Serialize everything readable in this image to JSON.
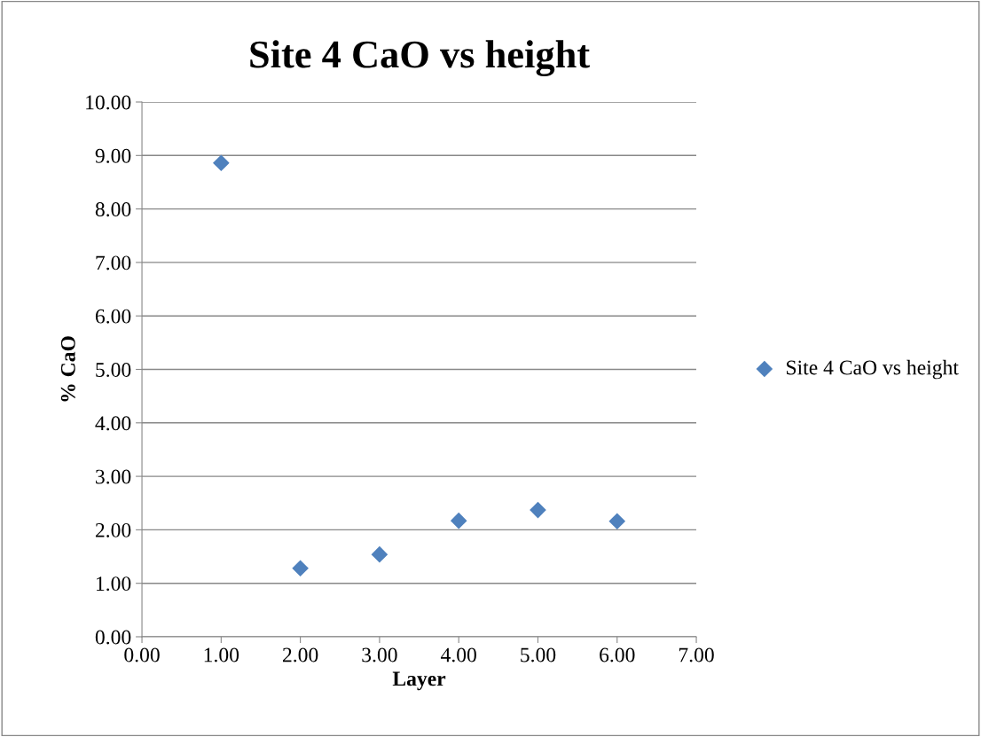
{
  "chart_data": {
    "type": "scatter",
    "title": "Site 4 CaO vs height",
    "xlabel": "Layer",
    "ylabel": "% CaO",
    "x": [
      1,
      2,
      3,
      4,
      5,
      6
    ],
    "series": [
      {
        "name": "Site 4 CaO vs height",
        "color": "#4f81bd",
        "values": [
          8.86,
          1.28,
          1.54,
          2.17,
          2.37,
          2.16
        ]
      }
    ],
    "xlim": [
      0,
      7
    ],
    "xticks": [
      {
        "value": 0,
        "label": "0.00"
      },
      {
        "value": 1,
        "label": "1.00"
      },
      {
        "value": 2,
        "label": "2.00"
      },
      {
        "value": 3,
        "label": "3.00"
      },
      {
        "value": 4,
        "label": "4.00"
      },
      {
        "value": 5,
        "label": "5.00"
      },
      {
        "value": 6,
        "label": "6.00"
      },
      {
        "value": 7,
        "label": "7.00"
      }
    ],
    "ylim": [
      0,
      10
    ],
    "yticks": [
      {
        "value": 0,
        "label": "0.00"
      },
      {
        "value": 1,
        "label": "1.00"
      },
      {
        "value": 2,
        "label": "2.00"
      },
      {
        "value": 3,
        "label": "3.00"
      },
      {
        "value": 4,
        "label": "4.00"
      },
      {
        "value": 5,
        "label": "5.00"
      },
      {
        "value": 6,
        "label": "6.00"
      },
      {
        "value": 7,
        "label": "7.00"
      },
      {
        "value": 8,
        "label": "8.00"
      },
      {
        "value": 9,
        "label": "9.00"
      },
      {
        "value": 10,
        "label": "10.00"
      }
    ],
    "grid": "y",
    "legend": "right",
    "marker": "diamond"
  }
}
